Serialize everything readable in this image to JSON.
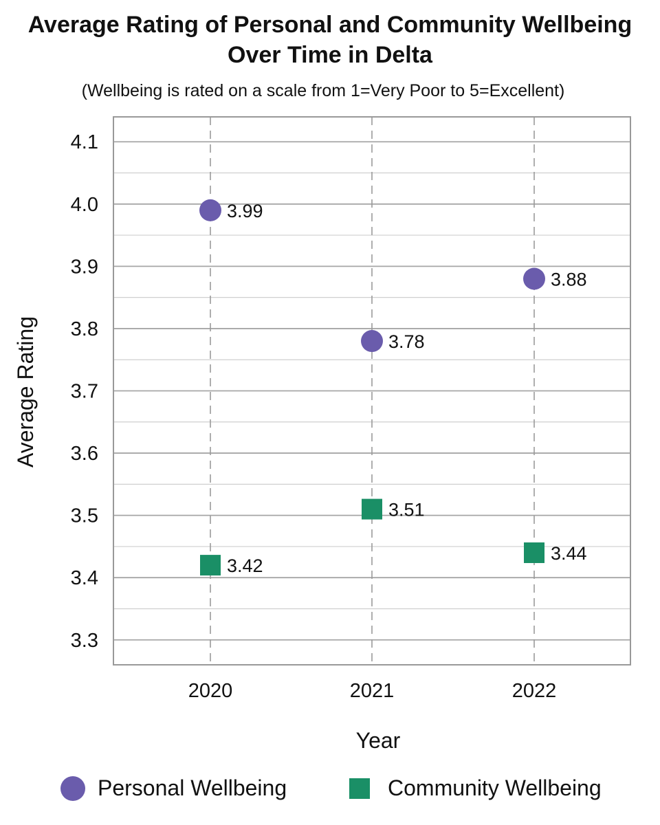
{
  "colors": {
    "personal": "#6a5cac",
    "community": "#1a8f66"
  },
  "chart_data": {
    "type": "scatter",
    "title": [
      "Average Rating of Personal and Community Wellbeing",
      "Over Time in Delta"
    ],
    "subtitle": "(Wellbeing is rated on a scale from 1=Very Poor to 5=Excellent)",
    "xlabel": "Year",
    "ylabel": "Average Rating",
    "categories": [
      "2020",
      "2021",
      "2022"
    ],
    "ylim": [
      3.26,
      4.14
    ],
    "yticks": [
      "3.3",
      "3.4",
      "3.5",
      "3.6",
      "3.7",
      "3.8",
      "3.9",
      "4.0",
      "4.1"
    ],
    "grid": true,
    "legend_position": "bottom",
    "series": [
      {
        "name": "Personal Wellbeing",
        "marker": "circle",
        "values": [
          3.99,
          3.78,
          3.88
        ],
        "labels": [
          "3.99",
          "3.78",
          "3.88"
        ]
      },
      {
        "name": "Community Wellbeing",
        "marker": "square",
        "values": [
          3.42,
          3.51,
          3.44
        ],
        "labels": [
          "3.42",
          "3.51",
          "3.44"
        ]
      }
    ]
  }
}
